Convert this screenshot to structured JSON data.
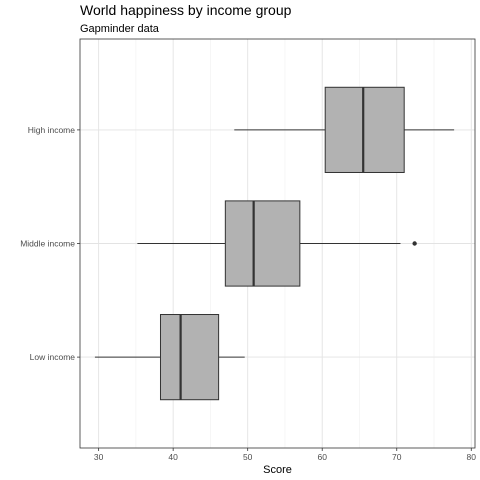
{
  "chart_data": {
    "type": "boxplot",
    "orientation": "horizontal",
    "title": "World happiness by income group",
    "subtitle": "Gapminder data",
    "xlabel": "Score",
    "ylabel": "",
    "xlim": [
      27.5,
      80.5
    ],
    "x_ticks": [
      30,
      40,
      50,
      60,
      70,
      80
    ],
    "grid": true,
    "legend": "none",
    "box_fill": "#b2b2b2",
    "line_color": "#333333",
    "categories": [
      "Low income",
      "Middle income",
      "High income"
    ],
    "boxes": [
      {
        "category": "Low income",
        "whisker_low": 29.5,
        "q1": 38.3,
        "median": 41.0,
        "q3": 46.1,
        "whisker_high": 49.6,
        "outliers": []
      },
      {
        "category": "Middle income",
        "whisker_low": 35.2,
        "q1": 47.0,
        "median": 50.8,
        "q3": 57.0,
        "whisker_high": 70.5,
        "outliers": [
          72.4
        ]
      },
      {
        "category": "High income",
        "whisker_low": 48.2,
        "q1": 60.4,
        "median": 65.5,
        "q3": 71.0,
        "whisker_high": 77.7,
        "outliers": []
      }
    ]
  }
}
